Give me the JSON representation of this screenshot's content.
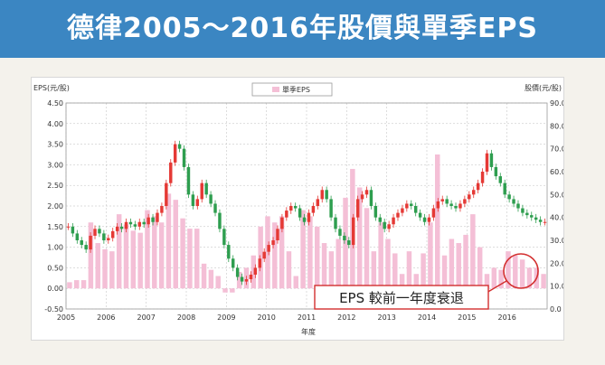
{
  "header": {
    "title": "德律2005～2016年股價與單季EPS"
  },
  "chart_data": {
    "type": "bar+candlestick",
    "left_axis": {
      "label": "EPS(元/股)",
      "min": -0.5,
      "max": 4.5,
      "ticks": [
        "-0.50",
        "0.00",
        "0.50",
        "1.00",
        "1.50",
        "2.00",
        "2.50",
        "3.00",
        "3.50",
        "4.00",
        "4.50"
      ]
    },
    "right_axis": {
      "label": "股價(元/股)",
      "min": 0,
      "max": 90,
      "ticks": [
        "0.0",
        "10.0",
        "20.0",
        "30.0",
        "40.0",
        "50.0",
        "60.0",
        "70.0",
        "80.0",
        "90.0"
      ]
    },
    "x_axis": {
      "label": "年度",
      "ticks": [
        "2005",
        "2006",
        "2007",
        "2008",
        "2009",
        "2010",
        "2011",
        "2012",
        "2013",
        "2014",
        "2015",
        "2016"
      ],
      "start": 2005,
      "end": 2017
    },
    "legend": {
      "label": "單季EPS",
      "placement": "top-center"
    },
    "annotation": "EPS 較前一年度衰退",
    "colors": {
      "eps_bar": "#f4bfd6",
      "up": "#e53935",
      "down": "#2e9e4f",
      "circle": "#d32f2f",
      "grid": "#bdbdbd"
    },
    "series": [
      {
        "name": "單季EPS",
        "axis": "left",
        "values": [
          0.15,
          0.2,
          0.2,
          1.6,
          1.1,
          0.95,
          0.9,
          1.8,
          1.55,
          1.4,
          1.35,
          1.9,
          1.75,
          1.6,
          2.3,
          2.15,
          1.7,
          1.45,
          1.45,
          0.6,
          0.45,
          0.3,
          -0.1,
          -0.1,
          0.4,
          0.5,
          0.8,
          1.5,
          1.75,
          1.6,
          1.75,
          0.9,
          0.3,
          1.9,
          1.75,
          1.5,
          1.1,
          0.9,
          1.2,
          2.2,
          2.9,
          2.45,
          1.95,
          0.9,
          1.6,
          1.2,
          0.85,
          0.35,
          0.9,
          0.35,
          0.85,
          1.6,
          3.25,
          0.8,
          1.2,
          1.1,
          1.3,
          1.8,
          1.0,
          0.35,
          0.5,
          0.45,
          0.9,
          0.8,
          0.7,
          0.5,
          0.5,
          0.35
        ]
      },
      {
        "name": "股價",
        "axis": "right",
        "values": [
          36,
          33,
          30,
          28,
          26,
          32,
          35,
          33,
          30,
          31,
          34,
          36,
          35,
          38,
          37,
          36,
          38,
          37,
          40,
          38,
          42,
          45,
          55,
          64,
          72,
          70,
          62,
          50,
          45,
          48,
          55,
          50,
          46,
          42,
          35,
          28,
          22,
          18,
          14,
          12,
          13,
          15,
          18,
          22,
          25,
          28,
          30,
          35,
          40,
          43,
          45,
          44,
          40,
          38,
          42,
          45,
          48,
          52,
          48,
          40,
          35,
          32,
          30,
          28,
          40,
          48,
          50,
          52,
          45,
          40,
          38,
          35,
          37,
          40,
          42,
          44,
          46,
          45,
          42,
          40,
          38,
          40,
          44,
          47,
          48,
          46,
          45,
          44,
          46,
          48,
          50,
          52,
          55,
          60,
          68,
          62,
          58,
          55,
          50,
          48,
          46,
          44,
          42,
          41,
          40,
          39,
          38,
          38
        ]
      }
    ]
  }
}
